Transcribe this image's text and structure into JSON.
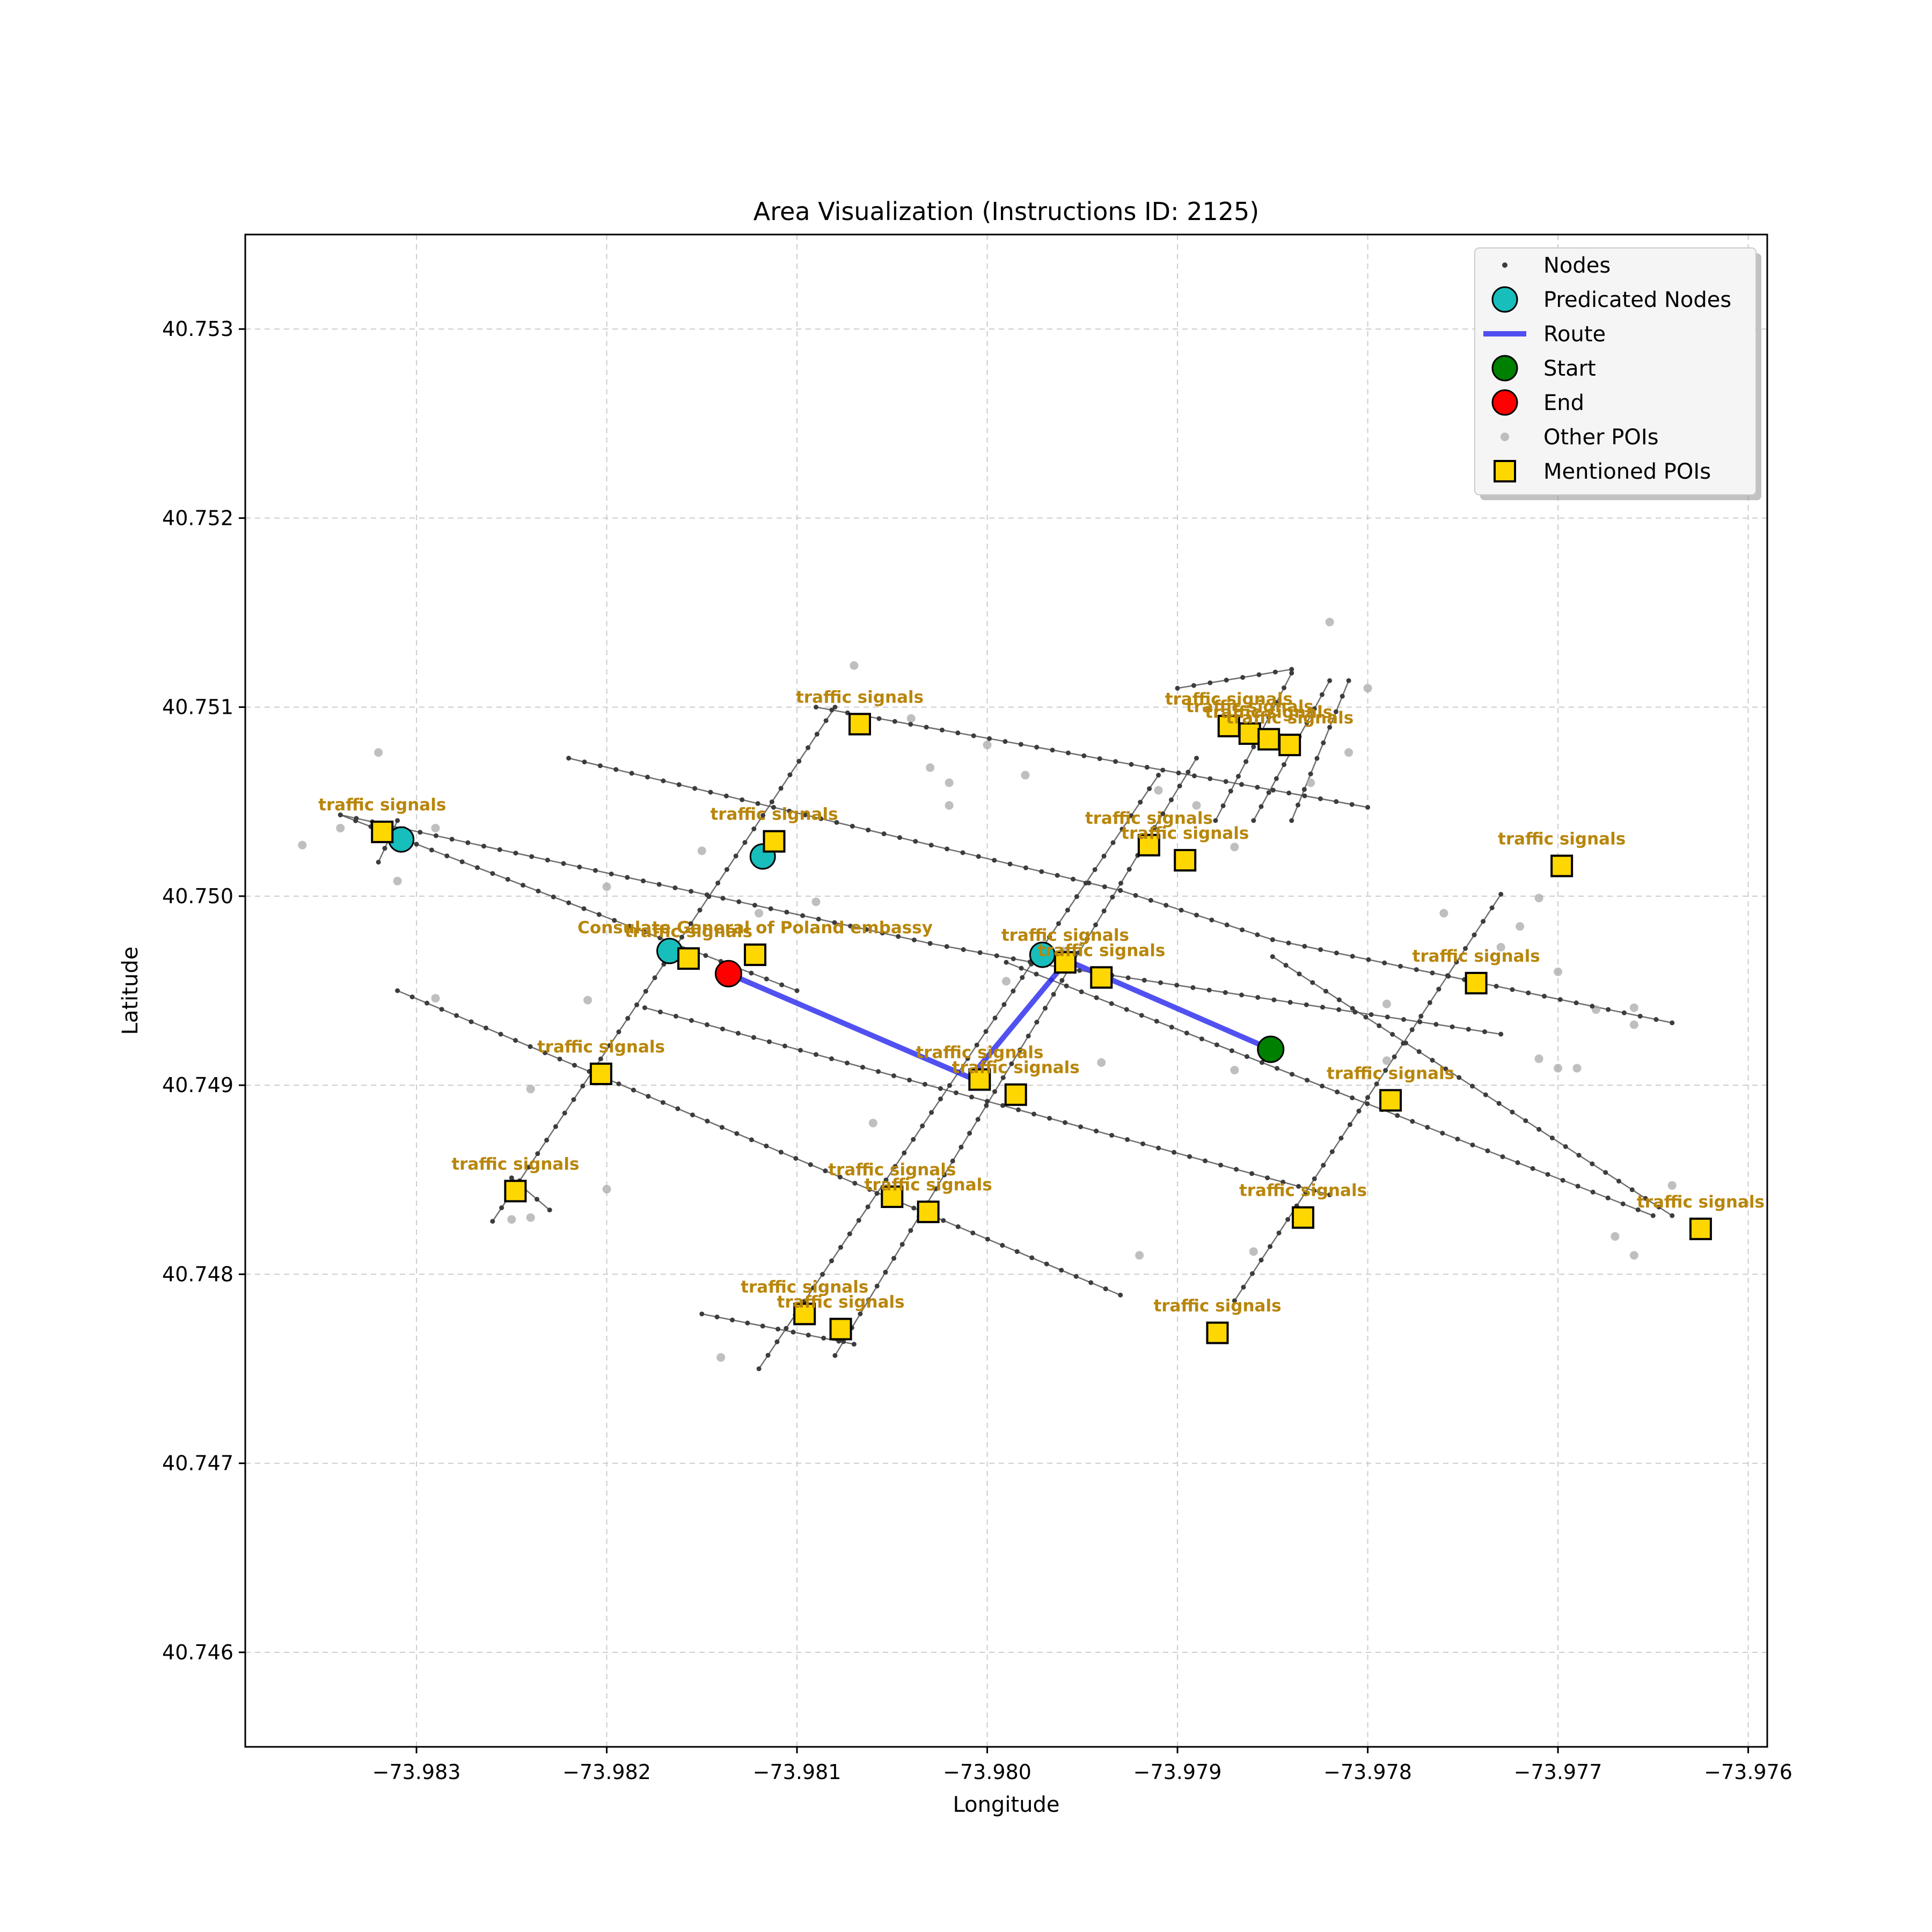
{
  "chart_data": {
    "type": "map",
    "title": "Area Visualization (Instructions ID: 2125)",
    "xlabel": "Longitude",
    "ylabel": "Latitude",
    "xlim": [
      -73.9839,
      -73.9759
    ],
    "ylim": [
      40.7455,
      40.7535
    ],
    "xticks": [
      -73.983,
      -73.982,
      -73.981,
      -73.98,
      -73.979,
      -73.978,
      -73.977,
      -73.976
    ],
    "xtick_labels": [
      "−73.983",
      "−73.982",
      "−73.981",
      "−73.980",
      "−73.979",
      "−73.978",
      "−73.977",
      "−73.976"
    ],
    "yticks": [
      40.746,
      40.747,
      40.748,
      40.749,
      40.75,
      40.751,
      40.752,
      40.753
    ],
    "ytick_labels": [
      "40.746",
      "40.747",
      "40.748",
      "40.749",
      "40.750",
      "40.751",
      "40.752",
      "40.753"
    ],
    "grid": true,
    "legend_position": "top-right",
    "legend": [
      {
        "key": "nodes",
        "label": "Nodes"
      },
      {
        "key": "predicated",
        "label": "Predicated Nodes"
      },
      {
        "key": "route",
        "label": "Route"
      },
      {
        "key": "start",
        "label": "Start"
      },
      {
        "key": "end",
        "label": "End"
      },
      {
        "key": "other_pois",
        "label": "Other POIs"
      },
      {
        "key": "mentioned_pois",
        "label": "Mentioned POIs"
      }
    ],
    "colors": {
      "nodes": "#3c3c3c",
      "edges": "#555555",
      "predicated": "#17bebb",
      "route": "#3333ee",
      "start": "#008000",
      "end": "#ff0000",
      "other_pois": "#a9a9a9",
      "mentioned_pois": "#ffd700",
      "poi_label": "#b8860b",
      "grid": "#cccccc"
    },
    "streets": [
      [
        [
          -73.9834,
          40.75043
        ],
        [
          -73.9803,
          40.74975
        ],
        [
          -73.9796,
          40.74962
        ],
        [
          -73.9773,
          40.74927
        ]
      ],
      [
        [
          -73.9822,
          40.75073
        ],
        [
          -73.9793,
          40.75003
        ],
        [
          -73.9785,
          40.74977
        ],
        [
          -73.9764,
          40.74933
        ]
      ],
      [
        [
          -73.9809,
          40.751
        ],
        [
          -73.978,
          40.75047
        ]
      ],
      [
        [
          -73.9831,
          40.7495
        ],
        [
          -73.9793,
          40.74789
        ]
      ],
      [
        [
          -73.9834,
          40.75043
        ],
        [
          -73.981,
          40.7495
        ]
      ],
      [
        [
          -73.9818,
          40.74941
        ],
        [
          -73.9782,
          40.74842
        ]
      ],
      [
        [
          -73.9799,
          40.74965
        ],
        [
          -73.9765,
          40.74831
        ]
      ],
      [
        [
          -73.9825,
          40.74851
        ],
        [
          -73.9823,
          40.74834
        ]
      ],
      [
        [
          -73.9815,
          40.74779
        ],
        [
          -73.9807,
          40.74763
        ]
      ],
      [
        [
          -73.9785,
          40.74968
        ],
        [
          -73.9764,
          40.74831
        ]
      ],
      [
        [
          -73.9826,
          40.74828
        ],
        [
          -73.9808,
          40.751
        ]
      ],
      [
        [
          -73.9832,
          40.75018
        ],
        [
          -73.9831,
          40.7504
        ]
      ],
      [
        [
          -73.9812,
          40.7475
        ],
        [
          -73.9791,
          40.75064
        ]
      ],
      [
        [
          -73.9808,
          40.74757
        ],
        [
          -73.9789,
          40.75073
        ]
      ],
      [
        [
          -73.9787,
          40.74786
        ],
        [
          -73.9773,
          40.75001
        ]
      ],
      [
        [
          -73.979,
          40.7511
        ],
        [
          -73.9784,
          40.7512
        ]
      ],
      [
        [
          -73.9788,
          40.7504
        ],
        [
          -73.9784,
          40.75118
        ]
      ],
      [
        [
          -73.9786,
          40.7504
        ],
        [
          -73.9782,
          40.75114
        ]
      ],
      [
        [
          -73.9784,
          40.7504
        ],
        [
          -73.9781,
          40.75114
        ]
      ]
    ],
    "predicated_nodes": [
      [
        -73.98308,
        40.7503
      ],
      [
        -73.98167,
        40.74971
      ],
      [
        -73.98118,
        40.75021
      ],
      [
        -73.97971,
        40.74969
      ]
    ],
    "route": [
      [
        -73.98136,
        40.74959
      ],
      [
        -73.98009,
        40.74904
      ],
      [
        -73.97958,
        40.74966
      ],
      [
        -73.97851,
        40.74919
      ]
    ],
    "start": [
      -73.97851,
      40.74919
    ],
    "end": [
      -73.98136,
      40.74959
    ],
    "other_pois": [
      [
        -73.9836,
        40.75027
      ],
      [
        -73.9834,
        40.75036
      ],
      [
        -73.9832,
        40.75076
      ],
      [
        -73.9831,
        40.75008
      ],
      [
        -73.9829,
        40.75036
      ],
      [
        -73.9829,
        40.74946
      ],
      [
        -73.9824,
        40.74898
      ],
      [
        -73.982,
        40.75005
      ],
      [
        -73.9821,
        40.74945
      ],
      [
        -73.982,
        40.74845
      ],
      [
        -73.9824,
        40.7483
      ],
      [
        -73.9825,
        40.74829
      ],
      [
        -73.9815,
        40.75024
      ],
      [
        -73.9812,
        40.74991
      ],
      [
        -73.9809,
        40.74997
      ],
      [
        -73.9807,
        40.75122
      ],
      [
        -73.9804,
        40.75094
      ],
      [
        -73.9803,
        40.75068
      ],
      [
        -73.9802,
        40.7506
      ],
      [
        -73.9802,
        40.75048
      ],
      [
        -73.98,
        40.7508
      ],
      [
        -73.9798,
        40.75064
      ],
      [
        -73.9799,
        40.74955
      ],
      [
        -73.9796,
        40.74971
      ],
      [
        -73.9794,
        40.74912
      ],
      [
        -73.9792,
        40.7481
      ],
      [
        -73.9791,
        40.75056
      ],
      [
        -73.9789,
        40.75048
      ],
      [
        -73.9787,
        40.74908
      ],
      [
        -73.9786,
        40.74812
      ],
      [
        -73.9787,
        40.75026
      ],
      [
        -73.9783,
        40.7506
      ],
      [
        -73.9782,
        40.75145
      ],
      [
        -73.978,
        40.7511
      ],
      [
        -73.9781,
        40.75076
      ],
      [
        -73.9779,
        40.74913
      ],
      [
        -73.9779,
        40.7489
      ],
      [
        -73.9776,
        40.74991
      ],
      [
        -73.9773,
        40.74973
      ],
      [
        -73.9772,
        40.74984
      ],
      [
        -73.9771,
        40.74999
      ],
      [
        -73.977,
        40.7496
      ],
      [
        -73.9771,
        40.74914
      ],
      [
        -73.977,
        40.74909
      ],
      [
        -73.9768,
        40.7494
      ],
      [
        -73.9766,
        40.74941
      ],
      [
        -73.9766,
        40.74932
      ],
      [
        -73.9764,
        40.74847
      ],
      [
        -73.9767,
        40.7482
      ],
      [
        -73.9766,
        40.7481
      ],
      [
        -73.9769,
        40.74909
      ],
      [
        -73.9806,
        40.7488
      ],
      [
        -73.9814,
        40.74756
      ],
      [
        -73.9779,
        40.74943
      ]
    ],
    "mentioned_pois": [
      {
        "label": "traffic signals",
        "lon": -73.98318,
        "lat": 40.75034
      },
      {
        "label": "traffic signals",
        "lon": -73.98112,
        "lat": 40.75029
      },
      {
        "label": "traffic signals",
        "lon": -73.98067,
        "lat": 40.75091
      },
      {
        "label": "Consulate General of Poland embassy",
        "lon": -73.98122,
        "lat": 40.74969
      },
      {
        "label": "traffic signals",
        "lon": -73.98157,
        "lat": 40.74967
      },
      {
        "label": "traffic signals",
        "lon": -73.98203,
        "lat": 40.74906
      },
      {
        "label": "traffic signals",
        "lon": -73.98248,
        "lat": 40.74844
      },
      {
        "label": "traffic signals",
        "lon": -73.98004,
        "lat": 40.74903
      },
      {
        "label": "traffic signals",
        "lon": -73.97985,
        "lat": 40.74895
      },
      {
        "label": "traffic signals",
        "lon": -73.97959,
        "lat": 40.74965
      },
      {
        "label": "traffic signals",
        "lon": -73.9794,
        "lat": 40.74957
      },
      {
        "label": "traffic signals",
        "lon": -73.97915,
        "lat": 40.75027
      },
      {
        "label": "traffic signals",
        "lon": -73.97896,
        "lat": 40.75019
      },
      {
        "label": "traffic signals",
        "lon": -73.97873,
        "lat": 40.7509
      },
      {
        "label": "traffic signals",
        "lon": -73.97862,
        "lat": 40.75086
      },
      {
        "label": "traffic signals",
        "lon": -73.97852,
        "lat": 40.75083
      },
      {
        "label": "traffic signals",
        "lon": -73.97841,
        "lat": 40.7508
      },
      {
        "label": "traffic signals",
        "lon": -73.9805,
        "lat": 40.74841
      },
      {
        "label": "traffic signals",
        "lon": -73.98031,
        "lat": 40.74833
      },
      {
        "label": "traffic signals",
        "lon": -73.98096,
        "lat": 40.74779
      },
      {
        "label": "traffic signals",
        "lon": -73.98077,
        "lat": 40.74771
      },
      {
        "label": "traffic signals",
        "lon": -73.97834,
        "lat": 40.7483
      },
      {
        "label": "traffic signals",
        "lon": -73.97879,
        "lat": 40.74769
      },
      {
        "label": "traffic signals",
        "lon": -73.97788,
        "lat": 40.74892
      },
      {
        "label": "traffic signals",
        "lon": -73.97743,
        "lat": 40.74954
      },
      {
        "label": "traffic signals",
        "lon": -73.97698,
        "lat": 40.75016
      },
      {
        "label": "traffic signals",
        "lon": -73.97625,
        "lat": 40.74824
      }
    ]
  }
}
